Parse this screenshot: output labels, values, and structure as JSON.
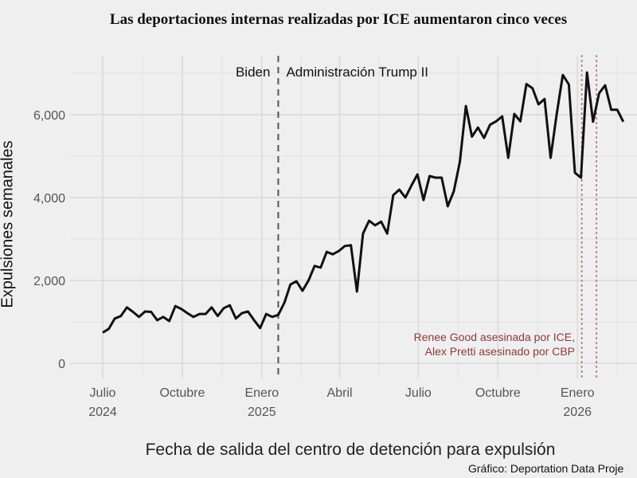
{
  "chart_data": {
    "type": "line",
    "title": "Las deportaciones internas realizadas por ICE aumentaron cinco veces",
    "xlabel": "Fecha de salida del centro de detención para expulsión",
    "ylabel": "Expulsiones semanales",
    "source": "Gráfico: Deportation Data Proje",
    "x_unit": "days since 2024-07-01",
    "ylim": [
      0,
      7000
    ],
    "yticks": [
      {
        "v": 0,
        "label": "0"
      },
      {
        "v": 2000,
        "label": "2,000"
      },
      {
        "v": 4000,
        "label": "4,000"
      },
      {
        "v": 6000,
        "label": "6,000"
      }
    ],
    "xticks": [
      {
        "v": 0,
        "label": "Julio",
        "sub": "2024"
      },
      {
        "v": 92,
        "label": "Octubre",
        "sub": ""
      },
      {
        "v": 184,
        "label": "Enero",
        "sub": "2025"
      },
      {
        "v": 274,
        "label": "Abril",
        "sub": ""
      },
      {
        "v": 365,
        "label": "Julio",
        "sub": ""
      },
      {
        "v": 457,
        "label": "Octubre",
        "sub": ""
      },
      {
        "v": 549,
        "label": "Enero",
        "sub": "2026"
      }
    ],
    "x_start": 0,
    "x_step": 7,
    "values": [
      740,
      830,
      1080,
      1140,
      1350,
      1240,
      1120,
      1250,
      1240,
      1040,
      1120,
      1020,
      1380,
      1310,
      1210,
      1120,
      1190,
      1190,
      1350,
      1140,
      1330,
      1400,
      1080,
      1210,
      1250,
      1040,
      850,
      1190,
      1120,
      1170,
      1460,
      1900,
      1980,
      1750,
      2000,
      2350,
      2310,
      2690,
      2630,
      2710,
      2830,
      2850,
      1730,
      3130,
      3440,
      3330,
      3420,
      3130,
      4060,
      4190,
      4000,
      4290,
      4560,
      3940,
      4520,
      4480,
      4480,
      3790,
      4150,
      4860,
      6210,
      5470,
      5690,
      5440,
      5760,
      5840,
      5960,
      4960,
      6020,
      5840,
      6740,
      6640,
      6250,
      6380,
      4960,
      6020,
      6960,
      6730,
      4600,
      4480,
      7020,
      5830,
      6520,
      6710,
      6120,
      6120,
      5830
    ],
    "line_color": "#111111",
    "annotations": {
      "divider": {
        "x": 203,
        "left_label": "Biden",
        "right_label": "Administración Trump II"
      },
      "events": {
        "x": [
          554,
          571
        ],
        "line1": "Renee Good asesinada por ICE,",
        "line2": "Alex Pretti asesinado por CBP",
        "color": "#8b3a3a"
      }
    }
  }
}
